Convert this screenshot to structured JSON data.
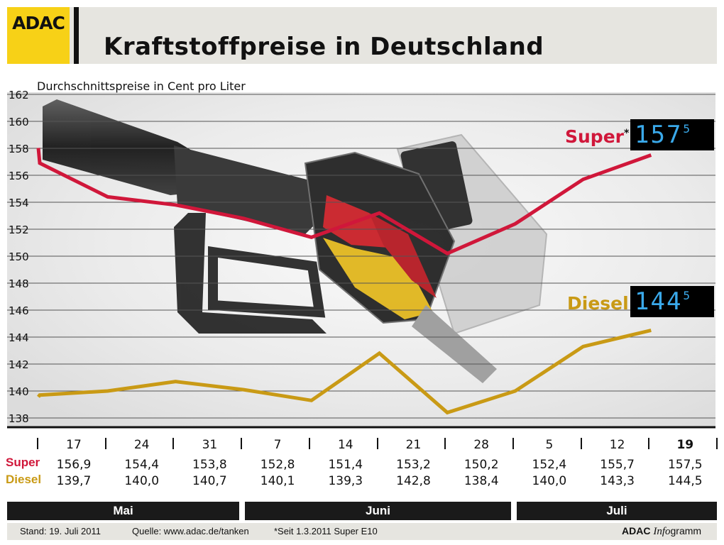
{
  "header": {
    "logo_text": "ADAC",
    "title": "Kraftstoffpreise in Deutschland"
  },
  "chart_data": {
    "type": "line",
    "title": "Kraftstoffpreise in Deutschland",
    "subtitle": "Durchschnittspreise in Cent pro Liter",
    "ylim": [
      138,
      162
    ],
    "y_ticks": [
      "162",
      "160",
      "158",
      "156",
      "154",
      "152",
      "150",
      "148",
      "146",
      "144",
      "142",
      "140",
      "138"
    ],
    "grid": true,
    "categories": [
      "17",
      "24",
      "31",
      "7",
      "14",
      "21",
      "28",
      "5",
      "12",
      "19"
    ],
    "series": [
      {
        "name": "Super",
        "color": "#d0173a",
        "values": [
          156.9,
          154.4,
          153.8,
          152.8,
          151.4,
          153.2,
          150.2,
          152.4,
          155.7,
          157.5
        ],
        "labels": [
          "156,9",
          "154,4",
          "153,8",
          "152,8",
          "151,4",
          "153,2",
          "150,2",
          "152,4",
          "155,7",
          "157,5"
        ]
      },
      {
        "name": "Diesel",
        "color": "#c99a15",
        "values": [
          139.7,
          140.0,
          140.7,
          140.1,
          139.3,
          142.8,
          138.4,
          140.0,
          143.3,
          144.5
        ],
        "labels": [
          "139,7",
          "140,0",
          "140,7",
          "140,1",
          "139,3",
          "142,8",
          "138,4",
          "140,0",
          "143,3",
          "144,5"
        ]
      }
    ],
    "months": [
      "Mai",
      "Juni",
      "Juli"
    ]
  },
  "legend": {
    "super_label": "Super",
    "super_marker": "*",
    "diesel_label": "Diesel",
    "super_display_main": "157",
    "super_display_sup": "5",
    "diesel_display_main": "144",
    "diesel_display_sup": "5"
  },
  "table": {
    "super_label": "Super",
    "diesel_label": "Diesel"
  },
  "footer": {
    "stand": "Stand:  19. Juli 2011",
    "quelle": "Quelle: www.adac.de/tanken",
    "note": "*Seit 1.3.2011 Super E10",
    "brand_bold": "ADAC",
    "brand_italic": "Info",
    "brand_rest": "gramm"
  }
}
